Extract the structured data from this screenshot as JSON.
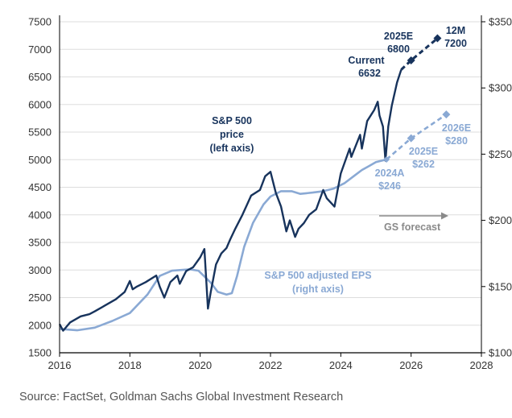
{
  "chart_data": {
    "type": "line",
    "title": "",
    "source": "Source: FactSet, Goldman Sachs Global Investment Research",
    "x_ticks": [
      "2016",
      "2018",
      "2020",
      "2022",
      "2024",
      "2026",
      "2028"
    ],
    "xlim": [
      2016,
      2028
    ],
    "left_axis": {
      "ylim": [
        1500,
        7500
      ],
      "ticks": [
        "1500",
        "2000",
        "2500",
        "3000",
        "3500",
        "4000",
        "4500",
        "5000",
        "5500",
        "6000",
        "6500",
        "7000",
        "7500"
      ]
    },
    "right_axis": {
      "ylim": [
        100,
        350
      ],
      "ticks": [
        "$100",
        "$150",
        "$200",
        "$250",
        "$300",
        "$350"
      ]
    },
    "colors": {
      "price": "#17335c",
      "eps": "#8aa9d4",
      "arrow": "#8a8a8a",
      "grid": "#dddddd",
      "axis": "#000000"
    },
    "series": [
      {
        "name": "S&P 500 price (left axis)",
        "axis": "left",
        "x": [
          2016.0,
          2016.1,
          2016.3,
          2016.6,
          2016.85,
          2017.0,
          2017.3,
          2017.6,
          2017.85,
          2018.0,
          2018.08,
          2018.2,
          2018.45,
          2018.75,
          2018.85,
          2018.98,
          2019.15,
          2019.35,
          2019.42,
          2019.6,
          2019.8,
          2020.0,
          2020.12,
          2020.22,
          2020.3,
          2020.45,
          2020.6,
          2020.75,
          2020.85,
          2021.0,
          2021.2,
          2021.45,
          2021.7,
          2021.85,
          2022.0,
          2022.15,
          2022.3,
          2022.45,
          2022.55,
          2022.7,
          2022.8,
          2022.95,
          2023.1,
          2023.3,
          2023.5,
          2023.6,
          2023.82,
          2024.0,
          2024.25,
          2024.3,
          2024.55,
          2024.6,
          2024.75,
          2024.95,
          2025.05,
          2025.1,
          2025.2,
          2025.27,
          2025.35,
          2025.45,
          2025.6,
          2025.72
        ],
        "values": [
          2020,
          1900,
          2050,
          2160,
          2200,
          2250,
          2360,
          2470,
          2600,
          2800,
          2650,
          2700,
          2780,
          2900,
          2700,
          2500,
          2780,
          2900,
          2750,
          2980,
          3050,
          3230,
          3380,
          2300,
          2600,
          3100,
          3300,
          3400,
          3550,
          3750,
          4000,
          4350,
          4450,
          4700,
          4780,
          4400,
          4150,
          3700,
          3900,
          3600,
          3750,
          3850,
          4000,
          4100,
          4450,
          4300,
          4150,
          4750,
          5200,
          5050,
          5450,
          5200,
          5700,
          5900,
          6050,
          5800,
          5600,
          4980,
          5600,
          5980,
          6400,
          6632
        ]
      },
      {
        "name": "S&P 500 adjusted EPS (right axis)",
        "axis": "right",
        "x": [
          2016.0,
          2016.5,
          2017.0,
          2017.5,
          2018.0,
          2018.5,
          2018.85,
          2019.2,
          2019.7,
          2019.95,
          2020.3,
          2020.5,
          2020.75,
          2020.9,
          2021.05,
          2021.25,
          2021.5,
          2021.8,
          2022.0,
          2022.3,
          2022.6,
          2022.85,
          2023.2,
          2023.5,
          2023.8,
          2024.1,
          2024.4,
          2024.6,
          2024.8,
          2025.0,
          2025.15,
          2025.3
        ],
        "values": [
          118,
          117,
          119,
          124,
          130,
          144,
          158,
          162,
          163,
          162,
          153,
          146,
          144,
          145,
          158,
          180,
          198,
          212,
          218,
          222,
          222,
          220,
          221,
          222,
          224,
          228,
          234,
          238,
          241,
          244,
          245,
          246
        ]
      },
      {
        "name": "Price forecast",
        "axis": "left",
        "x": [
          2025.72,
          2026.0,
          2026.75
        ],
        "values": [
          6632,
          6800,
          7200
        ],
        "dashed": true
      },
      {
        "name": "EPS forecast",
        "axis": "right",
        "x": [
          2025.3,
          2026.0,
          2027.0
        ],
        "values": [
          246,
          262,
          280
        ],
        "dashed": true
      }
    ],
    "annotations": {
      "price_label": [
        "S&P 500",
        "price",
        "(left axis)"
      ],
      "eps_label": [
        "S&P 500 adjusted EPS",
        "(right axis)"
      ],
      "current": [
        "Current",
        "6632"
      ],
      "target_2025": [
        "2025E",
        "6800"
      ],
      "target_12m": [
        "12M",
        "7200"
      ],
      "eps_2024": [
        "2024A",
        "$246"
      ],
      "eps_2025": [
        "2025E",
        "$262"
      ],
      "eps_2026": [
        "2026E",
        "$280"
      ],
      "forecast_label": "GS forecast"
    }
  }
}
